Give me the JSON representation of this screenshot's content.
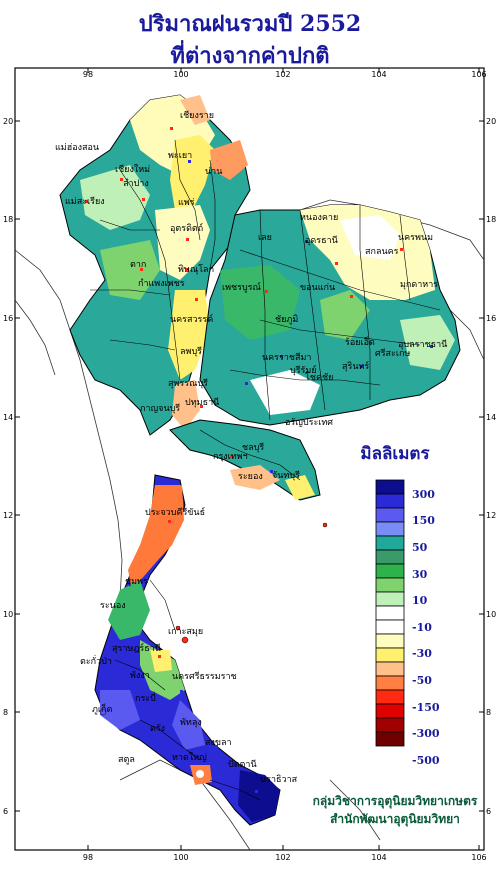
{
  "title_line1": "ปริมาณฝนรวมปี 2552",
  "title_line2": "ที่ต่างจากค่าปกติ",
  "axis": {
    "top_ticks": [
      "98",
      "100",
      "102",
      "104",
      "106"
    ],
    "bottom_ticks": [
      "98",
      "100",
      "102",
      "104",
      "106"
    ],
    "left_ticks": [
      "20",
      "18",
      "16",
      "14",
      "12",
      "10",
      "8",
      "6"
    ],
    "right_ticks": [
      "20",
      "18",
      "16",
      "14",
      "12",
      "10",
      "8",
      "6"
    ]
  },
  "legend": {
    "title": "มิลลิเมตร",
    "labels": [
      "300",
      "150",
      "50",
      "30",
      "10",
      "-10",
      "-30",
      "-50",
      "-150",
      "-300",
      "-500"
    ],
    "colors": [
      "#0d0d8f",
      "#2a2ad6",
      "#5a5af0",
      "#7a8cf5",
      "#20a89a",
      "#3a9a6a",
      "#2db34a",
      "#7ed36e",
      "#bff0b8",
      "#ffffff",
      "#ffffff",
      "#fffcc0",
      "#fff070",
      "#ffc08a",
      "#ff8040",
      "#ff2a10",
      "#e00000",
      "#a00000",
      "#700000"
    ]
  },
  "places": [
    "เชียงราย",
    "แม่ฮ่องสอน",
    "เชียงใหม่",
    "พะเยา",
    "ลำปาง",
    "น่าน",
    "แม่สะเรียง",
    "แพร่",
    "อุตรดิตถ์",
    "ตาก",
    "พิษณุโลก",
    "กำแพงเพชร",
    "หนองคาย",
    "อุดรธานี",
    "สกลนคร",
    "นครพนม",
    "เลย",
    "ขอนแก่น",
    "มุกดาหาร",
    "เพชรบูรณ์",
    "ชัยภูมิ",
    "นครสวรรค์",
    "ร้อยเอ็ด",
    "อุบลราชธานี",
    "ลพบุรี",
    "นครราชสีมา",
    "สุรินทร์",
    "สุพรรณบุรี",
    "ปทุมธานี",
    "กาญจนบุรี",
    "บุรีรัมย์",
    "โชคชัย",
    "ศรีสะเกษ",
    "อรัญประเทศ",
    "กรุงเทพฯ",
    "ชลบุรี",
    "ระยอง",
    "จันทบุรี",
    "ประจวบคีรีขันธ์",
    "ชุมพร",
    "ระนอง",
    "เกาะสมุย",
    "สุราษฎร์ธานี",
    "ตะกั่วป่า",
    "พังงา",
    "นครศรีธรรมราช",
    "ภูเก็ต",
    "กระบี่",
    "ตรัง",
    "พัทลุง",
    "สงขลา",
    "ปัตตานี",
    "นราธิวาส",
    "สตูล",
    "หาดใหญ่"
  ],
  "credit_line1": "กลุ่มวิชาการอุตุนิยมวิทยาเกษตร",
  "credit_line2": "สำนักพัฒนาอุตุนิยมวิทยา"
}
